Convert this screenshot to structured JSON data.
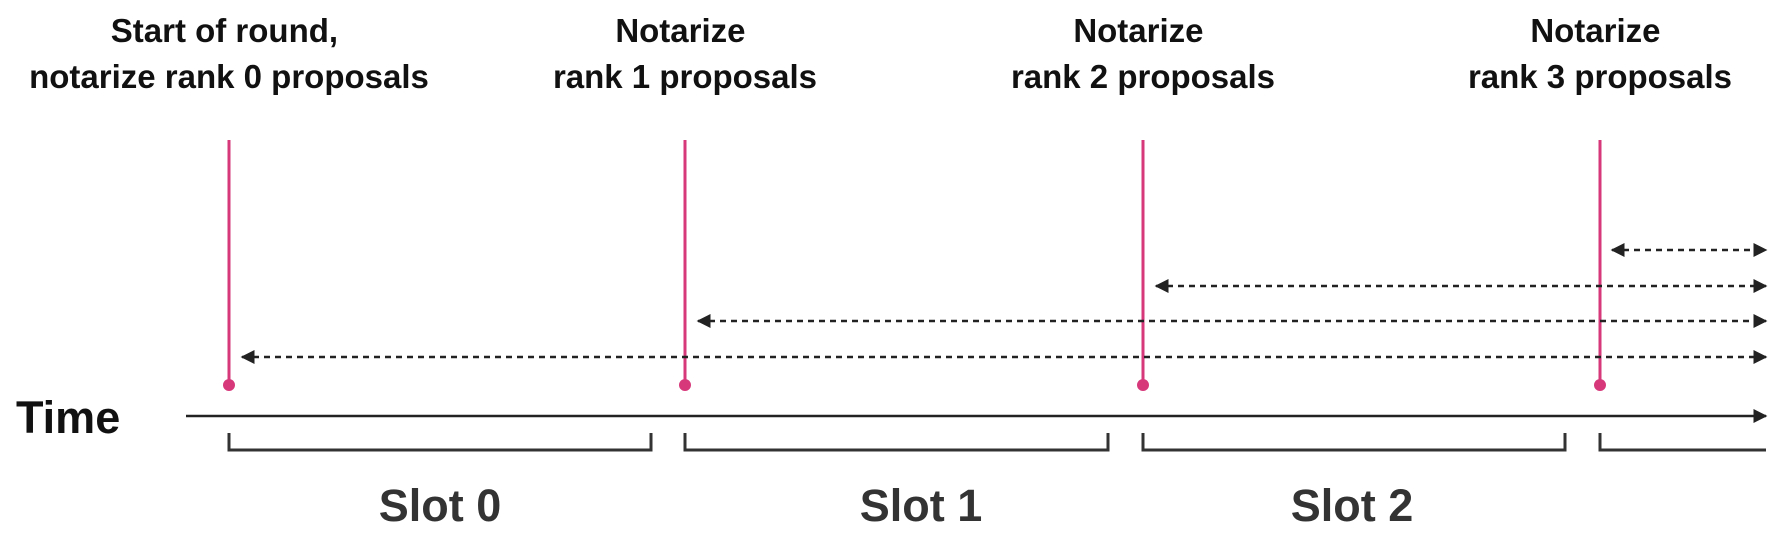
{
  "colors": {
    "marker": "#d6387a",
    "ink": "#222222",
    "text": "#111111",
    "slot_text": "#333333"
  },
  "axis": {
    "label": "Time"
  },
  "markers": [
    {
      "line1": "Start of round,",
      "line2": "notarize rank 0 proposals"
    },
    {
      "line1": "Notarize",
      "line2": "rank 1 proposals"
    },
    {
      "line1": "Notarize",
      "line2": "rank 2 proposals"
    },
    {
      "line1": "Notarize",
      "line2": "rank 3 proposals"
    }
  ],
  "slots": [
    {
      "label": "Slot 0"
    },
    {
      "label": "Slot 1"
    },
    {
      "label": "Slot 2"
    }
  ]
}
